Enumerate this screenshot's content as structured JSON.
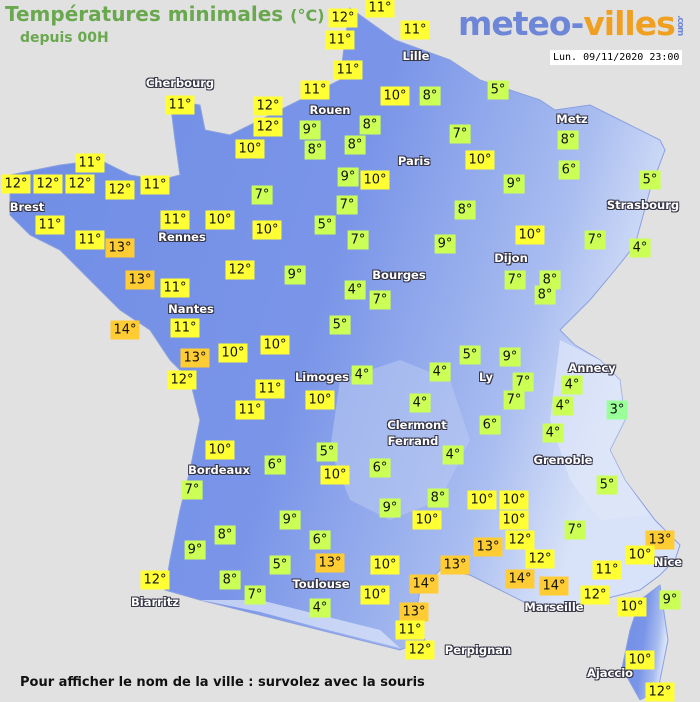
{
  "header": {
    "title": "Températures minimales",
    "unit": "(°C)",
    "subtitle": "depuis 00H"
  },
  "logo": {
    "part1": "meteo-",
    "part2": "villes",
    "part3": ".com"
  },
  "timestamp": "Lun. 09/11/2020 23:00",
  "footer": "Pour afficher le nom de la ville : survolez avec la souris",
  "colors": {
    "land": "#6f8de6",
    "mountain": "#c9d6f5",
    "cold": "#99ff99",
    "cool": "#ccff55",
    "mild": "#ffff33",
    "warm": "#ffcc33",
    "sea": "#e2e1e1"
  },
  "cities": [
    "Cherbourg",
    "Rouen",
    "Lille",
    "Paris",
    "Metz",
    "Strasbourg",
    "Brest",
    "Rennes",
    "Nantes",
    "Dijon",
    "Bourges",
    "Limoges",
    "Ly",
    "Annecy",
    "Clermont",
    "Ferrand",
    "Grenoble",
    "Bordeaux",
    "Toulouse",
    "Biarritz",
    "Marseille",
    "Nice",
    "Perpignan",
    "Ajaccio"
  ],
  "readings": [
    12,
    11,
    11,
    11,
    11,
    11,
    11,
    12,
    12,
    9,
    8,
    10,
    10,
    8,
    5,
    8,
    8,
    7,
    10,
    8,
    6,
    5,
    9,
    10,
    9,
    7,
    8,
    5,
    7,
    9,
    10,
    7,
    4,
    7,
    10,
    10,
    11,
    12,
    9,
    4,
    7,
    7,
    8,
    8,
    5,
    12,
    12,
    12,
    11,
    12,
    11,
    11,
    11,
    13,
    13,
    11,
    11,
    14,
    10,
    10,
    13,
    12,
    11,
    11,
    10,
    4,
    4,
    5,
    9,
    7,
    7,
    4,
    4,
    3,
    4,
    6,
    4,
    4,
    5,
    6,
    9,
    8,
    10,
    10,
    10,
    10,
    7,
    13,
    12,
    13,
    10,
    12,
    14,
    14,
    11,
    12,
    10,
    9,
    10,
    12,
    13,
    14,
    10,
    10,
    13,
    11,
    12,
    6,
    13,
    9,
    5,
    4,
    7,
    8,
    9,
    8,
    12,
    7,
    10,
    6,
    5,
    10
  ]
}
